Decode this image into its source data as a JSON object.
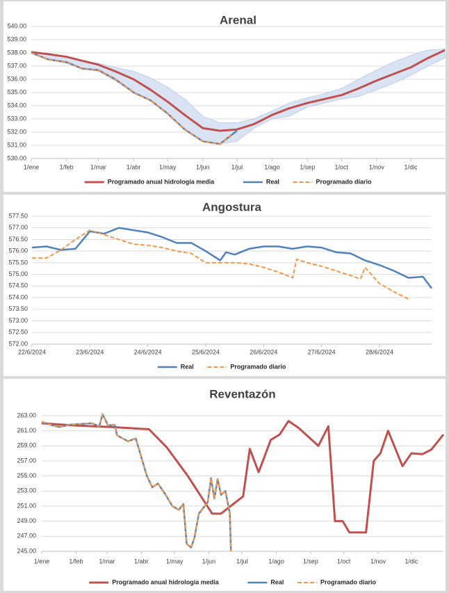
{
  "chart_data": [
    {
      "type": "line",
      "title": "Arenal",
      "xlim": [
        0,
        364
      ],
      "xticks": [
        {
          "value": 0,
          "label": "1/ene"
        },
        {
          "value": 31,
          "label": "1/feb"
        },
        {
          "value": 59,
          "label": "1/mar"
        },
        {
          "value": 90,
          "label": "1/abr"
        },
        {
          "value": 120,
          "label": "1/may"
        },
        {
          "value": 151,
          "label": "1/jun"
        },
        {
          "value": 181,
          "label": "1/jul"
        },
        {
          "value": 212,
          "label": "1/ago"
        },
        {
          "value": 243,
          "label": "1/sep"
        },
        {
          "value": 273,
          "label": "1/oct"
        },
        {
          "value": 304,
          "label": "1/nov"
        },
        {
          "value": 334,
          "label": "1/dic"
        }
      ],
      "ylim": [
        530,
        540
      ],
      "yticks": [
        {
          "value": 530,
          "label": "530.00"
        },
        {
          "value": 531,
          "label": "531.00"
        },
        {
          "value": 532,
          "label": "532.00"
        },
        {
          "value": 533,
          "label": "533.00"
        },
        {
          "value": 534,
          "label": "534.00"
        },
        {
          "value": 535,
          "label": "535.00"
        },
        {
          "value": 536,
          "label": "536.00"
        },
        {
          "value": 537,
          "label": "537.00"
        },
        {
          "value": 538,
          "label": "538.00"
        },
        {
          "value": 539,
          "label": "539.00"
        },
        {
          "value": 540,
          "label": "540.00"
        }
      ],
      "grid": true,
      "band": {
        "color": "#dae3f3",
        "x": [
          0,
          15,
          31,
          45,
          59,
          74,
          90,
          105,
          120,
          135,
          151,
          166,
          181,
          196,
          212,
          227,
          243,
          258,
          273,
          288,
          304,
          319,
          334,
          349,
          364
        ],
        "upper": [
          538.1,
          537.9,
          537.7,
          537.4,
          537.2,
          536.9,
          536.6,
          536.1,
          535.4,
          534.5,
          533.2,
          532.7,
          532.7,
          533.0,
          533.6,
          534.2,
          534.6,
          534.9,
          535.3,
          536.0,
          536.7,
          537.3,
          537.8,
          538.2,
          538.3
        ],
        "lower": [
          538.0,
          537.5,
          537.2,
          536.8,
          536.6,
          535.9,
          535.0,
          534.4,
          533.4,
          532.2,
          531.3,
          531.1,
          531.3,
          532.3,
          533.0,
          533.2,
          533.9,
          534.2,
          534.5,
          534.7,
          535.2,
          535.7,
          536.3,
          537.0,
          537.6
        ]
      },
      "series": [
        {
          "name": "Programado anual hidrología media",
          "color": "#c0504d",
          "width": 3,
          "dashed": false,
          "x": [
            0,
            15,
            31,
            45,
            59,
            74,
            90,
            105,
            120,
            135,
            151,
            166,
            181,
            196,
            212,
            227,
            243,
            258,
            273,
            288,
            304,
            319,
            334,
            349,
            364
          ],
          "values": [
            538.05,
            537.9,
            537.7,
            537.4,
            537.1,
            536.6,
            536.0,
            535.2,
            534.3,
            533.3,
            532.3,
            532.1,
            532.2,
            532.6,
            533.3,
            533.8,
            534.2,
            534.5,
            534.8,
            535.3,
            535.9,
            536.4,
            536.9,
            537.6,
            538.2
          ]
        },
        {
          "name": "Real",
          "color": "#4f81bd",
          "width": 2.5,
          "dashed": false,
          "x": [
            0,
            15,
            31,
            45,
            59,
            74,
            90,
            105,
            120,
            135,
            151,
            166,
            181
          ],
          "values": [
            538.0,
            537.5,
            537.3,
            536.8,
            536.7,
            536.0,
            535.0,
            534.4,
            533.4,
            532.2,
            531.3,
            531.1,
            532.1
          ]
        },
        {
          "name": "Programado diario",
          "color": "#f79646",
          "width": 2,
          "dashed": true,
          "x": [
            0,
            15,
            31,
            45,
            59,
            74,
            90,
            105,
            120,
            135,
            151,
            166,
            176
          ],
          "values": [
            538.0,
            537.5,
            537.3,
            536.8,
            536.7,
            536.0,
            535.0,
            534.4,
            533.4,
            532.2,
            531.3,
            531.1,
            531.8
          ]
        }
      ]
    },
    {
      "type": "line",
      "title": "Angostura",
      "xlim": [
        0,
        6.9
      ],
      "xticks": [
        {
          "value": 0,
          "label": "22/6/2024"
        },
        {
          "value": 1,
          "label": "23/6/2024"
        },
        {
          "value": 2,
          "label": "24/6/2024"
        },
        {
          "value": 3,
          "label": "25/6/2024"
        },
        {
          "value": 4,
          "label": "26/6/2024"
        },
        {
          "value": 5,
          "label": "27/6/2024"
        },
        {
          "value": 6,
          "label": "28/6/2024"
        }
      ],
      "ylim": [
        572,
        577.5
      ],
      "yticks": [
        {
          "value": 572,
          "label": "572.00"
        },
        {
          "value": 572.5,
          "label": "572.50"
        },
        {
          "value": 573,
          "label": "573.00"
        },
        {
          "value": 573.5,
          "label": "573.50"
        },
        {
          "value": 574,
          "label": "574.00"
        },
        {
          "value": 574.5,
          "label": "574.50"
        },
        {
          "value": 575,
          "label": "575.00"
        },
        {
          "value": 575.5,
          "label": "575.50"
        },
        {
          "value": 576,
          "label": "576.00"
        },
        {
          "value": 576.5,
          "label": "576.50"
        },
        {
          "value": 577,
          "label": "577.00"
        },
        {
          "value": 577.5,
          "label": "577.50"
        }
      ],
      "grid": true,
      "series": [
        {
          "name": "Real",
          "color": "#4f81bd",
          "width": 2.5,
          "dashed": false,
          "x": [
            0,
            0.25,
            0.5,
            0.75,
            1,
            1.25,
            1.5,
            1.75,
            2,
            2.25,
            2.5,
            2.75,
            3,
            3.25,
            3.35,
            3.5,
            3.75,
            4,
            4.25,
            4.5,
            4.75,
            5,
            5.25,
            5.5,
            5.75,
            6,
            6.25,
            6.5,
            6.75,
            6.9
          ],
          "values": [
            576.15,
            576.2,
            576.05,
            576.1,
            576.85,
            576.75,
            577.0,
            576.9,
            576.8,
            576.6,
            576.35,
            576.35,
            576.0,
            575.6,
            575.95,
            575.85,
            576.1,
            576.2,
            576.2,
            576.1,
            576.2,
            576.15,
            575.95,
            575.9,
            575.6,
            575.4,
            575.15,
            574.85,
            574.9,
            574.4
          ]
        },
        {
          "name": "Programado diario",
          "color": "#f79646",
          "width": 2,
          "dashed": true,
          "x": [
            0,
            0.25,
            0.5,
            0.75,
            1,
            1.25,
            1.5,
            1.75,
            2,
            2.25,
            2.5,
            2.75,
            3,
            3.25,
            3.5,
            3.75,
            4,
            4.25,
            4.5,
            4.57,
            4.75,
            5,
            5.25,
            5.5,
            5.67,
            5.75,
            6,
            6.25,
            6.53
          ],
          "values": [
            575.7,
            575.7,
            576.05,
            576.5,
            576.9,
            576.7,
            576.5,
            576.3,
            576.25,
            576.15,
            576.0,
            575.9,
            575.5,
            575.5,
            575.5,
            575.45,
            575.3,
            575.1,
            574.85,
            575.65,
            575.5,
            575.35,
            575.15,
            574.95,
            574.8,
            575.3,
            574.6,
            574.25,
            573.9
          ]
        }
      ]
    },
    {
      "type": "line",
      "title": "Reventazón",
      "xlim": [
        0,
        363
      ],
      "xticks": [
        {
          "value": 0,
          "label": "1/ene"
        },
        {
          "value": 31,
          "label": "1/feb"
        },
        {
          "value": 59,
          "label": "1/mar"
        },
        {
          "value": 90,
          "label": "1/abr"
        },
        {
          "value": 120,
          "label": "1/may"
        },
        {
          "value": 151,
          "label": "1/jun"
        },
        {
          "value": 181,
          "label": "1/jul"
        },
        {
          "value": 212,
          "label": "1/ago"
        },
        {
          "value": 243,
          "label": "1/sep"
        },
        {
          "value": 273,
          "label": "1/oct"
        },
        {
          "value": 304,
          "label": "1/nov"
        },
        {
          "value": 334,
          "label": "1/dic"
        }
      ],
      "ylim": [
        245,
        263
      ],
      "yticks": [
        {
          "value": 245,
          "label": "245.00"
        },
        {
          "value": 247,
          "label": "247.00"
        },
        {
          "value": 249,
          "label": "249.00"
        },
        {
          "value": 251,
          "label": "251.00"
        },
        {
          "value": 253,
          "label": "253.00"
        },
        {
          "value": 255,
          "label": "255.00"
        },
        {
          "value": 257,
          "label": "257.00"
        },
        {
          "value": 259,
          "label": "259.00"
        },
        {
          "value": 261,
          "label": "261.00"
        },
        {
          "value": 263,
          "label": "263.00"
        }
      ],
      "grid": true,
      "series": [
        {
          "name": "Programado anual hidrología media",
          "color": "#c0504d",
          "width": 3,
          "dashed": false,
          "x": [
            0,
            31,
            63,
            97,
            113,
            132,
            154,
            162,
            182,
            188,
            196,
            207,
            215,
            223,
            232,
            250,
            259,
            265,
            272,
            278,
            293,
            300,
            306,
            313,
            326,
            334,
            344,
            352,
            363
          ],
          "values": [
            262.0,
            261.7,
            261.5,
            261.2,
            258.8,
            255.0,
            250.0,
            250.0,
            252.3,
            258.6,
            255.5,
            259.8,
            260.5,
            262.3,
            261.4,
            259.0,
            261.6,
            249.0,
            249.0,
            247.5,
            247.5,
            257.0,
            258.0,
            261.0,
            256.3,
            258.0,
            257.9,
            258.5,
            260.5
          ]
        },
        {
          "name": "Real",
          "color": "#4f81bd",
          "width": 2.5,
          "dashed": false,
          "x": [
            0,
            8,
            16,
            25,
            35,
            45,
            52,
            55,
            60,
            66,
            68,
            78,
            85,
            90,
            95,
            100,
            105,
            112,
            118,
            124,
            128,
            131,
            135,
            138,
            142,
            150,
            153,
            156,
            159,
            162,
            166,
            170,
            171
          ],
          "values": [
            262.2,
            261.8,
            261.5,
            261.8,
            261.9,
            262.0,
            261.6,
            263.2,
            261.7,
            261.8,
            260.4,
            259.6,
            260.0,
            257.5,
            255.0,
            253.5,
            254.0,
            252.5,
            251.0,
            250.5,
            251.3,
            246.0,
            245.5,
            246.8,
            250.0,
            251.5,
            254.7,
            252.0,
            254.6,
            252.5,
            253.0,
            250.0,
            245.0
          ]
        },
        {
          "name": "Programado diario",
          "color": "#f79646",
          "width": 2,
          "dashed": true,
          "x": [
            0,
            8,
            16,
            25,
            35,
            45,
            52,
            55,
            60,
            66,
            68,
            78,
            85,
            90,
            95,
            100,
            105,
            112,
            118,
            124,
            128,
            131,
            135,
            138,
            142,
            150,
            153,
            156,
            159,
            162,
            166,
            170,
            171
          ],
          "values": [
            262.2,
            261.8,
            261.5,
            261.8,
            261.9,
            262.0,
            261.6,
            263.2,
            261.7,
            261.8,
            260.4,
            259.6,
            260.0,
            257.5,
            255.0,
            253.5,
            254.0,
            252.5,
            251.0,
            250.5,
            251.3,
            246.0,
            245.5,
            246.8,
            250.0,
            251.5,
            254.7,
            252.0,
            254.6,
            252.5,
            253.0,
            250.0,
            245.0
          ]
        }
      ]
    }
  ]
}
